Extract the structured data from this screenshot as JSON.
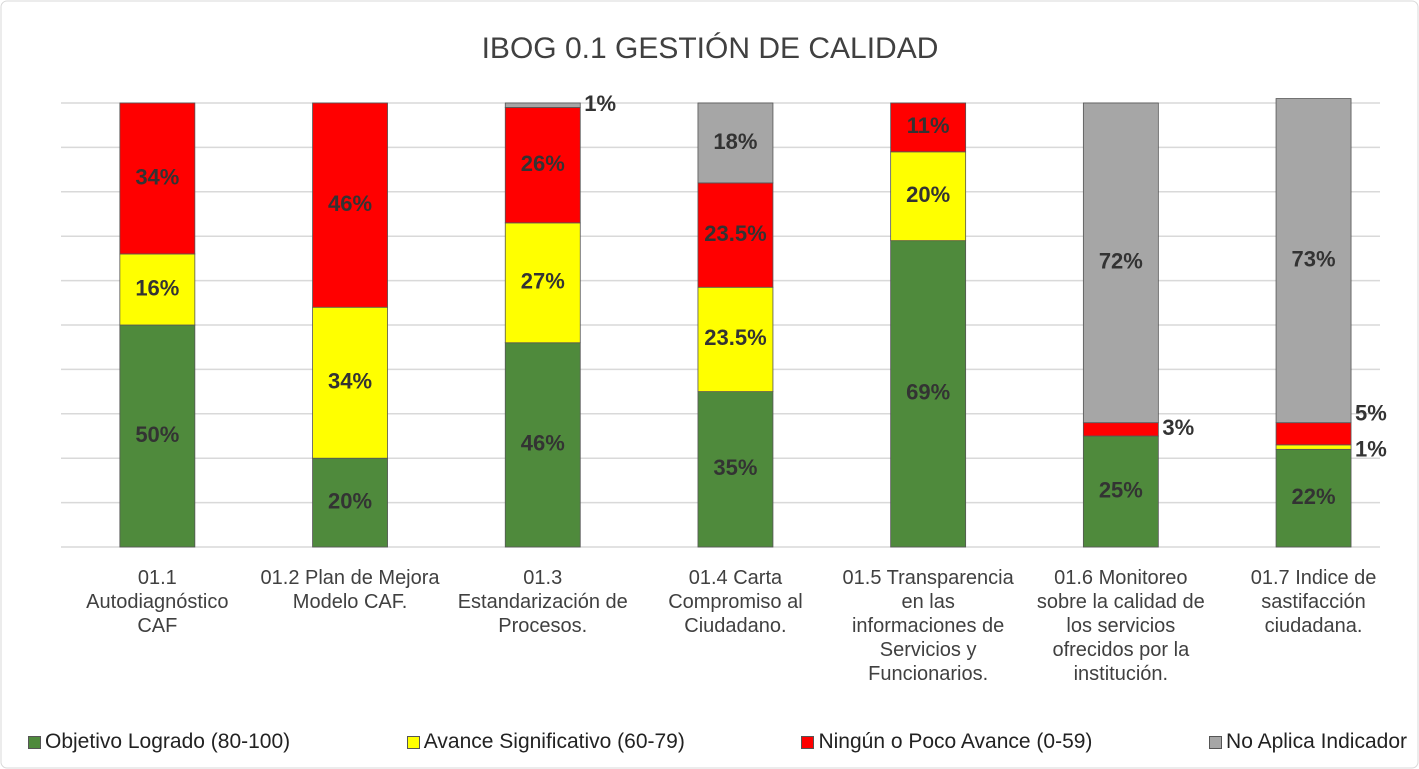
{
  "chart_data": {
    "type": "stacked_bar",
    "title": "IBOG 0.1 GESTIÓN DE CALIDAD",
    "categories": [
      "01.1 Autodiagnóstico CAF",
      "01.2 Plan de Mejora Modelo CAF.",
      "01.3 Estandarización de Procesos.",
      "01.4 Carta Compromiso al Ciudadano.",
      "01.5 Transparencia en las informaciones de Servicios y Funcionarios.",
      "01.6 Monitoreo sobre la calidad de los servicios ofrecidos por la institución.",
      "01.7 Indice de sastifacción ciudadana."
    ],
    "series": [
      {
        "name": "Objetivo Logrado (80-100)",
        "color": "#4f8a3c",
        "values": [
          50,
          20,
          46,
          35,
          69,
          25,
          22
        ],
        "value_labels": [
          "50%",
          "20%",
          "46%",
          "35%",
          "69%",
          "25%",
          "22%"
        ]
      },
      {
        "name": "Avance Significativo (60-79)",
        "color": "#ffff00",
        "values": [
          16,
          34,
          27,
          23.5,
          20,
          null,
          1
        ],
        "value_labels": [
          "16%",
          "34%",
          "27%",
          "23.5%",
          "20%",
          null,
          "1%"
        ]
      },
      {
        "name": "Ningún o Poco Avance (0-59)",
        "color": "#ff0000",
        "values": [
          34,
          46,
          26,
          23.5,
          11,
          3,
          5
        ],
        "value_labels": [
          "34%",
          "46%",
          "26%",
          "23.5%",
          "11%",
          "3%",
          "5%"
        ]
      },
      {
        "name": "No Aplica Indicador",
        "color": "#a6a6a6",
        "values": [
          null,
          null,
          1,
          18,
          null,
          72,
          73
        ],
        "value_labels": [
          null,
          null,
          "1%",
          "18%",
          null,
          "72%",
          "73%"
        ]
      }
    ],
    "ylim": [
      0,
      100
    ],
    "yticks": [
      0,
      10,
      20,
      30,
      40,
      50,
      60,
      70,
      80,
      90,
      100
    ],
    "grid": true
  }
}
